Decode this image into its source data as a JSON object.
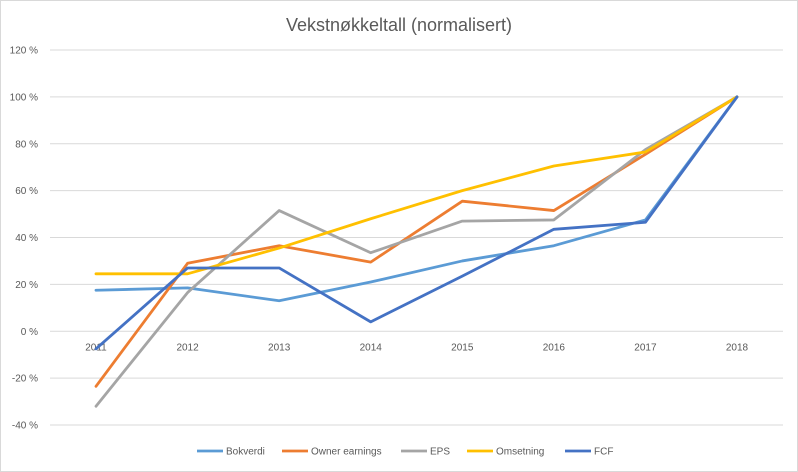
{
  "chart_data": {
    "type": "line",
    "title": "Vekstnøkkeltall (normalisert)",
    "xlabel": "",
    "ylabel": "",
    "categories": [
      "2011",
      "2012",
      "2013",
      "2014",
      "2015",
      "2016",
      "2017",
      "2018"
    ],
    "ylim": [
      -40,
      120
    ],
    "ytick_step": 20,
    "ytick_labels": [
      "-40 %",
      "-20 %",
      "0 %",
      "20 %",
      "40 %",
      "60 %",
      "80 %",
      "100 %",
      "120 %"
    ],
    "grid": true,
    "legend_position": "bottom",
    "series": [
      {
        "name": "Bokverdi",
        "color": "#5B9BD5",
        "values": [
          17.5,
          18.5,
          13,
          21,
          30,
          36.5,
          47.5,
          100
        ]
      },
      {
        "name": "Owner earnings",
        "color": "#ED7D31",
        "values": [
          -23.5,
          29,
          36.5,
          29.5,
          55.5,
          51.5,
          75.5,
          100
        ]
      },
      {
        "name": "EPS",
        "color": "#A5A5A5",
        "values": [
          -32,
          16.5,
          51.5,
          33.5,
          47,
          47.5,
          77.5,
          100
        ]
      },
      {
        "name": "Omsetning",
        "color": "#FFC000",
        "values": [
          24.5,
          24.5,
          35.5,
          48,
          60,
          70.5,
          76.5,
          100
        ]
      },
      {
        "name": "FCF",
        "color": "#4472C4",
        "values": [
          -7.5,
          27,
          27,
          4,
          23.5,
          43.5,
          46.5,
          100
        ]
      }
    ]
  }
}
